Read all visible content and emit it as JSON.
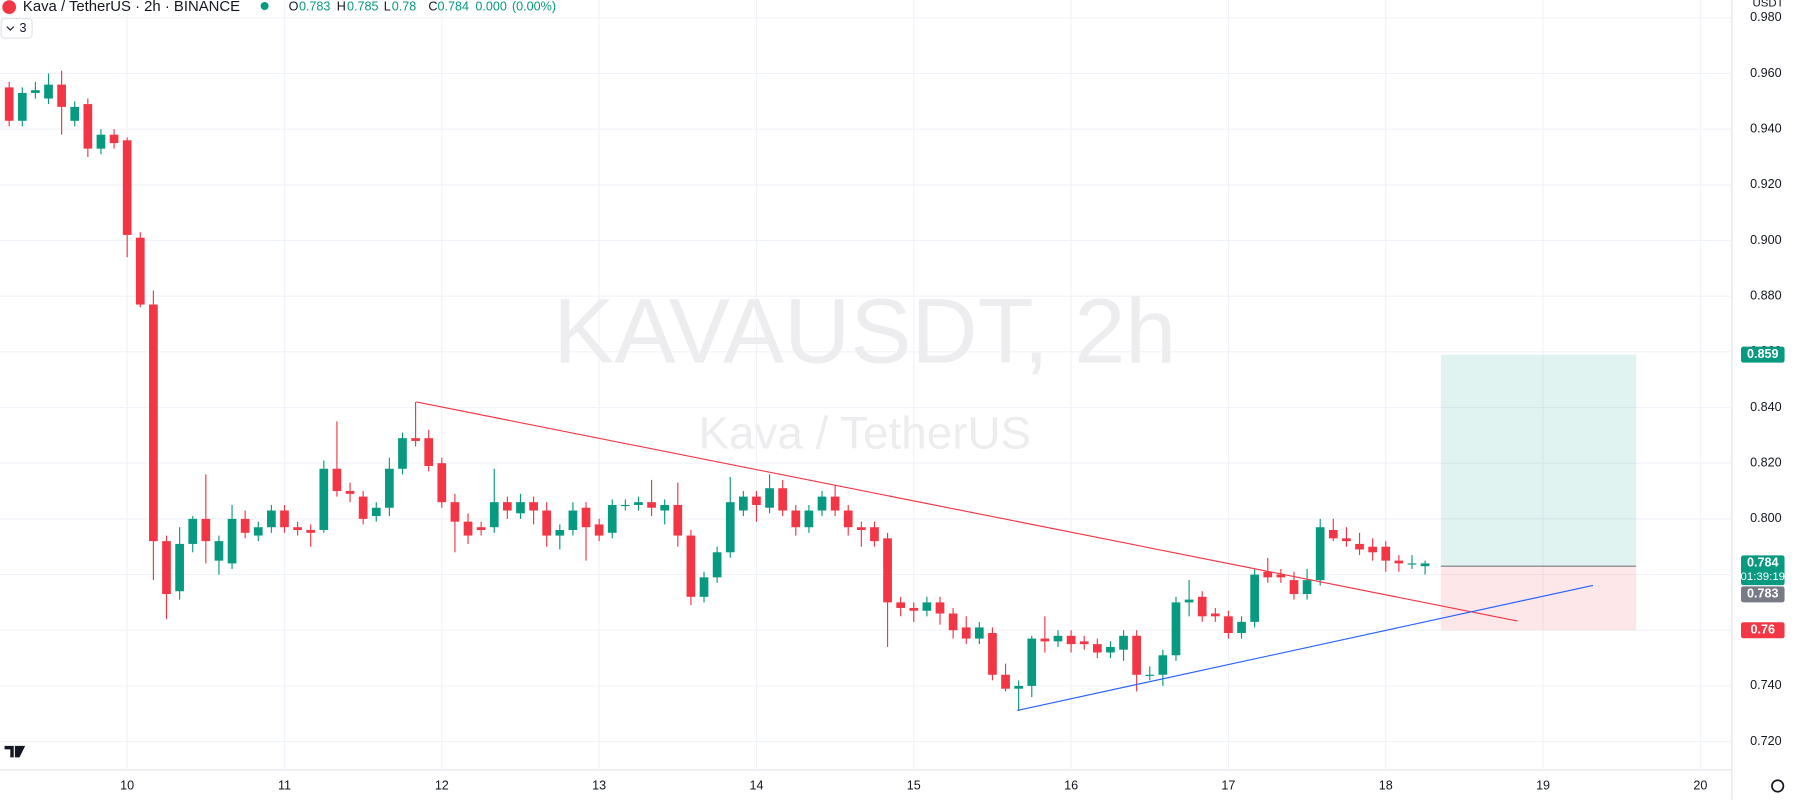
{
  "header": {
    "symbol": "Kava / TetherUS · 2h · BINANCE",
    "o_label": "O",
    "open": 0.783,
    "h_label": "H",
    "high": 0.785,
    "l_label": "L",
    "low": 0.78,
    "c_label": "C",
    "close": 0.784,
    "change": "0.000",
    "change_percent": "(0.00%)",
    "indicators": "3"
  },
  "watermark": {
    "title": "KAVAUSDT, 2h",
    "subtitle": "Kava / TetherUS"
  },
  "currency": "USDT",
  "chart_data": {
    "type": "candlestick",
    "up_color": "#089981",
    "down_color": "#f23645",
    "grid": true,
    "xlim": [
      -0.7,
      131.4
    ],
    "ylim": [
      0.7098,
      0.9863
    ],
    "xticks": [
      {
        "value": 9,
        "label": "10"
      },
      {
        "value": 21,
        "label": "11"
      },
      {
        "value": 33,
        "label": "12"
      },
      {
        "value": 45,
        "label": "13"
      },
      {
        "value": 57,
        "label": "14"
      },
      {
        "value": 69,
        "label": "15"
      },
      {
        "value": 81,
        "label": "16"
      },
      {
        "value": 93,
        "label": "17"
      },
      {
        "value": 105,
        "label": "18"
      },
      {
        "value": 117,
        "label": "19"
      },
      {
        "value": 129,
        "label": "20"
      }
    ],
    "yticks": [
      {
        "value": 0.72,
        "label": "0.720"
      },
      {
        "value": 0.74,
        "label": "0.740"
      },
      {
        "value": 0.76,
        "label": "0.760"
      },
      {
        "value": 0.78,
        "label": "0.780"
      },
      {
        "value": 0.8,
        "label": "0.800"
      },
      {
        "value": 0.82,
        "label": "0.820"
      },
      {
        "value": 0.84,
        "label": "0.840"
      },
      {
        "value": 0.86,
        "label": "0.860"
      },
      {
        "value": 0.88,
        "label": "0.880"
      },
      {
        "value": 0.9,
        "label": "0.900"
      },
      {
        "value": 0.92,
        "label": "0.920"
      },
      {
        "value": 0.94,
        "label": "0.940"
      },
      {
        "value": 0.96,
        "label": "0.960"
      },
      {
        "value": 0.98,
        "label": "0.980"
      }
    ],
    "open": [
      0.955,
      0.943,
      0.953,
      0.951,
      0.956,
      0.943,
      0.949,
      0.933,
      0.938,
      0.936,
      0.901,
      0.877,
      0.792,
      0.774,
      0.791,
      0.8,
      0.785,
      0.784,
      0.8,
      0.794,
      0.797,
      0.803,
      0.797,
      0.796,
      0.796,
      0.818,
      0.81,
      0.808,
      0.801,
      0.804,
      0.818,
      0.829,
      0.829,
      0.82,
      0.806,
      0.799,
      0.797,
      0.797,
      0.806,
      0.802,
      0.806,
      0.803,
      0.794,
      0.796,
      0.804,
      0.798,
      0.795,
      0.805,
      0.805,
      0.806,
      0.803,
      0.805,
      0.794,
      0.772,
      0.779,
      0.788,
      0.803,
      0.808,
      0.804,
      0.811,
      0.803,
      0.797,
      0.803,
      0.808,
      0.803,
      0.797,
      0.797,
      0.793,
      0.77,
      0.768,
      0.767,
      0.77,
      0.766,
      0.761,
      0.757,
      0.759,
      0.744,
      0.739,
      0.74,
      0.757,
      0.756,
      0.758,
      0.756,
      0.755,
      0.752,
      0.753,
      0.758,
      0.744,
      0.744,
      0.751,
      0.77,
      0.772,
      0.766,
      0.765,
      0.759,
      0.763,
      0.781,
      0.78,
      0.778,
      0.773,
      0.778,
      0.796,
      0.793,
      0.791,
      0.79,
      0.79,
      0.785,
      0.784,
      0.783
    ],
    "high": [
      0.957,
      0.955,
      0.957,
      0.96,
      0.961,
      0.95,
      0.951,
      0.94,
      0.94,
      0.937,
      0.903,
      0.882,
      0.794,
      0.797,
      0.801,
      0.816,
      0.794,
      0.805,
      0.803,
      0.799,
      0.805,
      0.805,
      0.799,
      0.798,
      0.821,
      0.835,
      0.813,
      0.81,
      0.806,
      0.822,
      0.831,
      0.842,
      0.832,
      0.822,
      0.809,
      0.802,
      0.799,
      0.818,
      0.808,
      0.809,
      0.808,
      0.806,
      0.798,
      0.806,
      0.806,
      0.8,
      0.807,
      0.807,
      0.808,
      0.814,
      0.807,
      0.813,
      0.796,
      0.781,
      0.79,
      0.815,
      0.81,
      0.81,
      0.816,
      0.814,
      0.805,
      0.805,
      0.81,
      0.812,
      0.805,
      0.799,
      0.799,
      0.795,
      0.772,
      0.77,
      0.772,
      0.772,
      0.768,
      0.765,
      0.763,
      0.761,
      0.748,
      0.742,
      0.758,
      0.765,
      0.76,
      0.76,
      0.758,
      0.757,
      0.756,
      0.76,
      0.76,
      0.747,
      0.753,
      0.772,
      0.778,
      0.774,
      0.768,
      0.767,
      0.765,
      0.782,
      0.786,
      0.782,
      0.781,
      0.782,
      0.8,
      0.8,
      0.797,
      0.795,
      0.793,
      0.792,
      0.787,
      0.787,
      0.785
    ],
    "low": [
      0.941,
      0.941,
      0.951,
      0.949,
      0.938,
      0.941,
      0.93,
      0.931,
      0.933,
      0.894,
      0.876,
      0.778,
      0.764,
      0.771,
      0.788,
      0.784,
      0.78,
      0.782,
      0.793,
      0.792,
      0.795,
      0.795,
      0.794,
      0.79,
      0.795,
      0.808,
      0.806,
      0.798,
      0.799,
      0.801,
      0.816,
      0.826,
      0.817,
      0.804,
      0.788,
      0.791,
      0.794,
      0.795,
      0.8,
      0.8,
      0.798,
      0.79,
      0.789,
      0.794,
      0.785,
      0.792,
      0.793,
      0.803,
      0.803,
      0.801,
      0.798,
      0.79,
      0.769,
      0.77,
      0.777,
      0.786,
      0.801,
      0.799,
      0.802,
      0.801,
      0.794,
      0.795,
      0.801,
      0.801,
      0.794,
      0.79,
      0.79,
      0.754,
      0.765,
      0.763,
      0.765,
      0.762,
      0.757,
      0.755,
      0.755,
      0.742,
      0.738,
      0.731,
      0.736,
      0.752,
      0.754,
      0.752,
      0.753,
      0.75,
      0.75,
      0.749,
      0.738,
      0.742,
      0.74,
      0.749,
      0.765,
      0.763,
      0.763,
      0.757,
      0.757,
      0.761,
      0.777,
      0.777,
      0.771,
      0.771,
      0.776,
      0.792,
      0.79,
      0.787,
      0.785,
      0.781,
      0.781,
      0.782,
      0.78
    ],
    "close": [
      0.943,
      0.953,
      0.954,
      0.956,
      0.948,
      0.948,
      0.933,
      0.938,
      0.935,
      0.902,
      0.877,
      0.792,
      0.773,
      0.791,
      0.8,
      0.792,
      0.792,
      0.8,
      0.795,
      0.797,
      0.803,
      0.797,
      0.796,
      0.795,
      0.818,
      0.81,
      0.809,
      0.8,
      0.804,
      0.818,
      0.829,
      0.828,
      0.819,
      0.806,
      0.799,
      0.794,
      0.796,
      0.806,
      0.803,
      0.806,
      0.803,
      0.794,
      0.796,
      0.803,
      0.797,
      0.794,
      0.805,
      0.805,
      0.806,
      0.804,
      0.805,
      0.794,
      0.772,
      0.779,
      0.788,
      0.806,
      0.808,
      0.805,
      0.811,
      0.803,
      0.797,
      0.803,
      0.808,
      0.803,
      0.797,
      0.796,
      0.792,
      0.77,
      0.768,
      0.767,
      0.77,
      0.766,
      0.76,
      0.757,
      0.761,
      0.744,
      0.739,
      0.74,
      0.757,
      0.756,
      0.758,
      0.755,
      0.755,
      0.752,
      0.754,
      0.758,
      0.744,
      0.744,
      0.751,
      0.77,
      0.771,
      0.765,
      0.765,
      0.759,
      0.763,
      0.78,
      0.779,
      0.779,
      0.773,
      0.778,
      0.797,
      0.793,
      0.792,
      0.789,
      0.788,
      0.785,
      0.784,
      0.784,
      0.784
    ],
    "trendlines": [
      {
        "color": "#f23645",
        "x": [
          31.06,
          115.05
        ],
        "y": [
          0.842,
          0.7633
        ]
      },
      {
        "color": "#2962ff",
        "x": [
          76.9,
          120.8
        ],
        "y": [
          0.7312,
          0.7761
        ]
      }
    ],
    "position": {
      "x": [
        109.2,
        124.1
      ],
      "entry": 0.783,
      "target": 0.859,
      "stop": 0.76
    },
    "last_price": 0.784,
    "countdown": "01:39:19"
  }
}
